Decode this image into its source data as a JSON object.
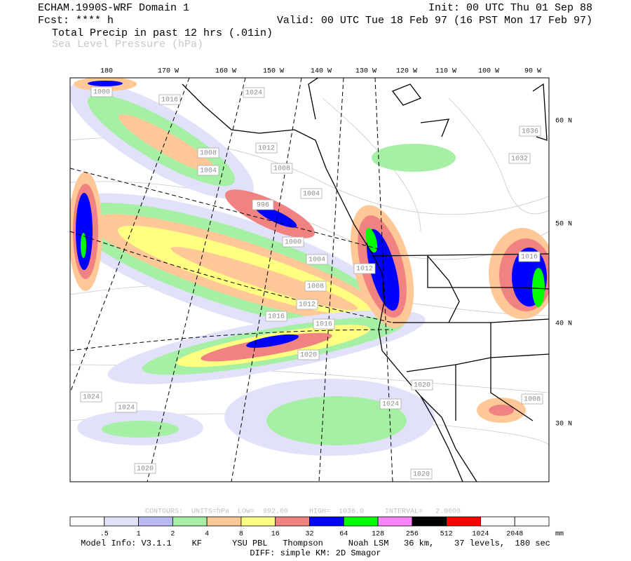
{
  "header": {
    "model": "ECHAM.1990S-WRF Domain 1",
    "init": "Init: 00 UTC Thu 01 Sep 88",
    "forecast": "Fcst: **** h",
    "valid": "Valid: 00 UTC Tue 18 Feb 97 (16 PST Mon 17 Feb 97)",
    "field": "Total Precip in past 12 hrs (.01in)",
    "overlay": "Sea Level Pressure (hPa)"
  },
  "map": {
    "longitude_labels": [
      "180",
      "170 W",
      "160 W",
      "150 W",
      "140 W",
      "130 W",
      "120 W",
      "110 W",
      "100 W",
      "90 W"
    ],
    "latitude_labels": [
      "60 N",
      "50 N",
      "40 N",
      "30 N"
    ],
    "isobar_labels": [
      "1000",
      "1016",
      "1024",
      "1012",
      "1008",
      "1004",
      "1008",
      "1004",
      "996",
      "1000",
      "1004",
      "1012",
      "1008",
      "1012",
      "1016",
      "1016",
      "1020",
      "1020",
      "1024",
      "1024",
      "1024",
      "1020",
      "1020",
      "1016",
      "1032",
      "1036",
      "1008"
    ]
  },
  "contour_info": "CONTOURS:  UNITS=hPa  LOW=  992.00     HIGH=  1036.0     INTERVAL=   2.0000",
  "color_bar": {
    "colors": [
      "#ffffff",
      "#e1e1fa",
      "#b9b9f5",
      "#a5f0a5",
      "#ffc896",
      "#ffff82",
      "#f08282",
      "#0000ff",
      "#00ff00",
      "#ff82ff",
      "#000000",
      "#ff0000",
      "#ffffff",
      "#ffffff"
    ],
    "labels": [
      ".5",
      "1",
      "2",
      "4",
      "8",
      "16",
      "32",
      "64",
      "128",
      "256",
      "512",
      "1024",
      "2048"
    ],
    "unit": "mm"
  },
  "footer": {
    "model_info": "Model Info: V3.1.1    KF      YSU PBL   Thompson     Noah LSM   36 km,    37 levels,  180 sec",
    "diff": "DIFF: simple KM: 2D Smagor"
  }
}
